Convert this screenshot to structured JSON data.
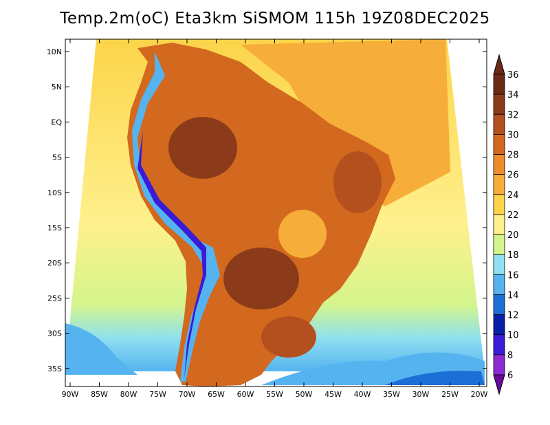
{
  "title": "Temp.2m(oC) Eta3km SiSMOM 115h 19Z08DEC2025",
  "map": {
    "lat_ticks": [
      "10N",
      "5N",
      "EQ",
      "5S",
      "10S",
      "15S",
      "20S",
      "25S",
      "30S",
      "35S"
    ],
    "lon_ticks": [
      "90W",
      "85W",
      "80W",
      "75W",
      "70W",
      "65W",
      "60W",
      "55W",
      "50W",
      "45W",
      "40W",
      "35W",
      "30W",
      "25W",
      "20W"
    ]
  },
  "colorbar": {
    "labels": [
      "36",
      "34",
      "32",
      "30",
      "28",
      "26",
      "24",
      "22",
      "20",
      "18",
      "16",
      "14",
      "12",
      "10",
      "8",
      "6"
    ],
    "colors": [
      "#6b2a14",
      "#8c3b1a",
      "#b4501e",
      "#d2691e",
      "#ee8c2c",
      "#f7ad39",
      "#fcd44a",
      "#fff08c",
      "#d4f58c",
      "#8fe0f0",
      "#55b4f0",
      "#1c6fd6",
      "#0a1fa8",
      "#3b1bd6",
      "#8b2ad0",
      "#6a0a98"
    ]
  }
}
